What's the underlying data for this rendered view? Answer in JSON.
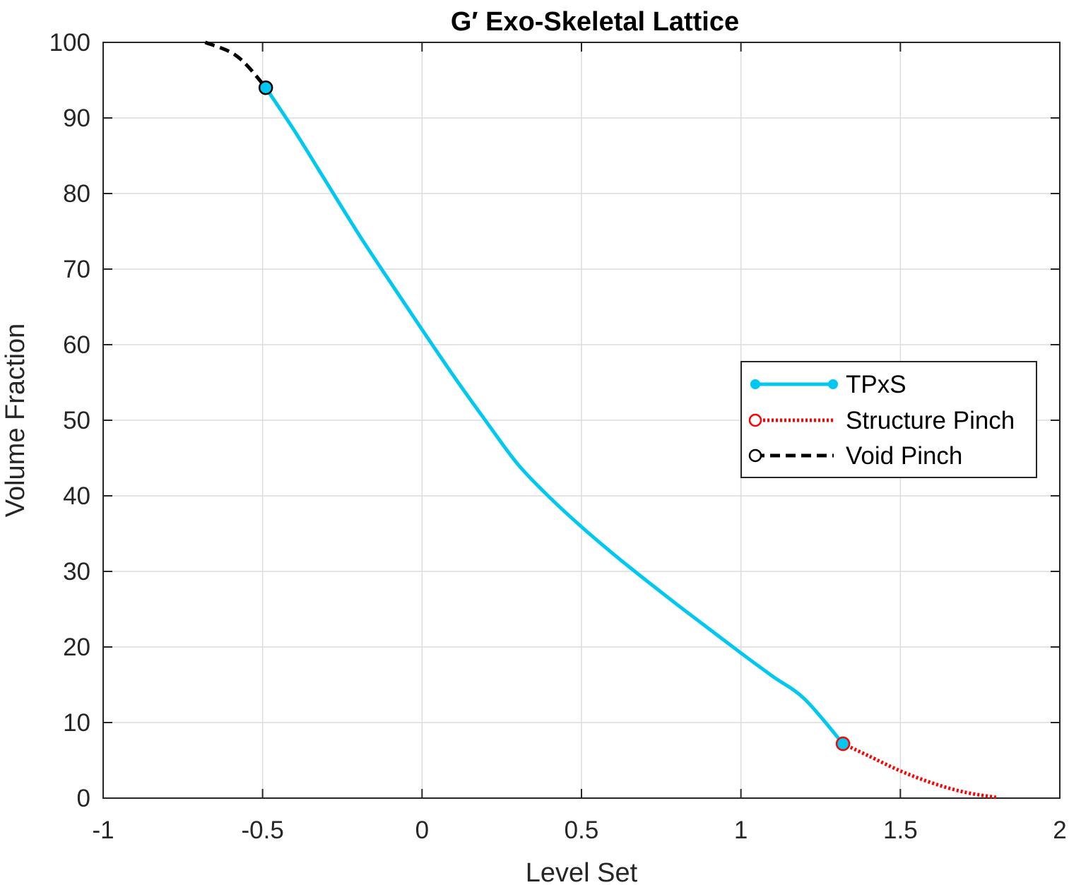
{
  "chart_data": {
    "type": "line",
    "title": "G′ Exo-Skeletal Lattice",
    "xlabel": "Level Set",
    "ylabel": "Volume Fraction",
    "xlim": [
      -1,
      2
    ],
    "ylim": [
      0,
      100
    ],
    "xticks": [
      -1,
      -0.5,
      0,
      0.5,
      1,
      1.5,
      2
    ],
    "xtick_labels": [
      "-1",
      "-0.5",
      "0",
      "0.5",
      "1",
      "1.5",
      "2"
    ],
    "yticks": [
      0,
      10,
      20,
      30,
      40,
      50,
      60,
      70,
      80,
      90,
      100
    ],
    "ytick_labels": [
      "0",
      "10",
      "20",
      "30",
      "40",
      "50",
      "60",
      "70",
      "80",
      "90",
      "100"
    ],
    "grid": true,
    "legend_position": "right",
    "series": [
      {
        "name": "TPxS",
        "color": "#00c8f0",
        "line_style": "solid",
        "marker": "filled-circle",
        "points": [
          [
            -0.49,
            94
          ],
          [
            -0.4,
            88.3
          ],
          [
            -0.3,
            81.5
          ],
          [
            -0.2,
            74.7
          ],
          [
            -0.1,
            68.3
          ],
          [
            0,
            62
          ],
          [
            0.1,
            55.8
          ],
          [
            0.2,
            49.9
          ],
          [
            0.3,
            44.2
          ],
          [
            0.4,
            39.8
          ],
          [
            0.5,
            35.9
          ],
          [
            0.6,
            32.3
          ],
          [
            0.7,
            28.9
          ],
          [
            0.8,
            25.6
          ],
          [
            0.9,
            22.4
          ],
          [
            1.0,
            19.2
          ],
          [
            1.1,
            16.1
          ],
          [
            1.2,
            13.1
          ],
          [
            1.32,
            7.2
          ]
        ]
      },
      {
        "name": "Structure Pinch",
        "color": "#ff0000",
        "line_style": "dotted",
        "marker": "open-circle",
        "points": [
          [
            1.32,
            7.2
          ],
          [
            1.4,
            5.6
          ],
          [
            1.5,
            3.6
          ],
          [
            1.6,
            2.0
          ],
          [
            1.7,
            0.8
          ],
          [
            1.8,
            0.1
          ]
        ]
      },
      {
        "name": "Void Pinch",
        "color": "#000000",
        "line_style": "dashed",
        "marker": "open-circle",
        "points": [
          [
            -0.68,
            100
          ],
          [
            -0.6,
            98.7
          ],
          [
            -0.55,
            97.0
          ],
          [
            -0.49,
            94
          ]
        ]
      }
    ]
  }
}
